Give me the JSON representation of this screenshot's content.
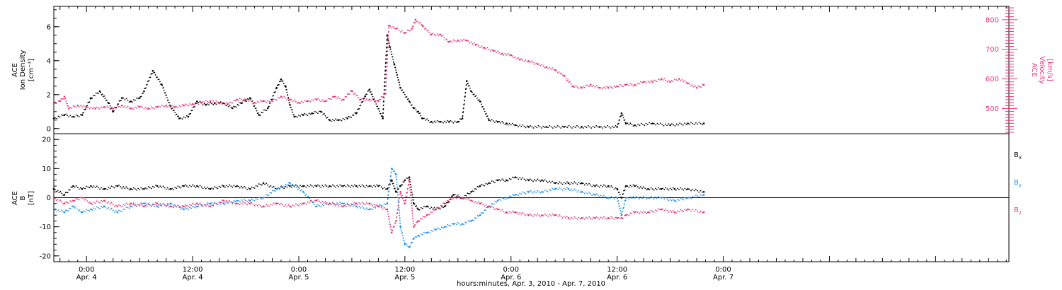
{
  "colors": {
    "density": "#000000",
    "velocity": "#e8336e",
    "bx": "#000000",
    "by": "#1f8ee8",
    "bz": "#e8336e",
    "frame": "#000000"
  },
  "x_axis": {
    "label": "hours:minutes, Apr.  3, 2010 - Apr.  7, 2010",
    "range_hours": [
      20.3,
      128.3
    ],
    "ticks": [
      {
        "hour": 24,
        "time": "0:00",
        "day": "Apr. 4"
      },
      {
        "hour": 36,
        "time": "12:00",
        "day": "Apr. 4"
      },
      {
        "hour": 48,
        "time": "0:00",
        "day": "Apr. 5"
      },
      {
        "hour": 60,
        "time": "12:00",
        "day": "Apr. 5"
      },
      {
        "hour": 72,
        "time": "0:00",
        "day": "Apr. 6"
      },
      {
        "hour": 84,
        "time": "12:00",
        "day": "Apr. 6"
      },
      {
        "hour": 96,
        "time": "0:00",
        "day": "Apr. 7"
      }
    ]
  },
  "chart_data": [
    {
      "type": "scatter",
      "panel": "plasma",
      "left_axis": {
        "label_line1": "ACE",
        "label_line2": "Ion Density",
        "label_line3": "[cm⁻³]",
        "ylim": [
          -0.3,
          7.2
        ],
        "ticks": [
          0,
          2,
          4,
          6
        ]
      },
      "right_axis": {
        "label_line1": "ACE",
        "label_line2": "Velocity",
        "label_line3": "[km/s]",
        "ylim": [
          415,
          845
        ],
        "ticks": [
          500,
          600,
          700,
          800
        ]
      },
      "series": [
        {
          "id": "density",
          "axis": "left",
          "x": [
            20.3,
            21.5,
            22.5,
            23.5,
            24.5,
            25.5,
            26.5,
            27.0,
            28.0,
            29.0,
            30.0,
            30.5,
            31.5,
            32.5,
            33.5,
            34.5,
            35.5,
            36.5,
            37.5,
            38.5,
            39.5,
            40.5,
            41.5,
            42.5,
            43.5,
            44.5,
            45.5,
            46.0,
            46.5,
            47.0,
            47.5,
            48.5,
            49.5,
            50.5,
            51.5,
            52.5,
            53.5,
            54.5,
            55.5,
            56.0,
            57.5,
            58.0,
            58.3,
            58.8,
            59.5,
            60.5,
            61.0,
            61.5,
            62.0,
            63.0,
            64.0,
            65.0,
            66.0,
            66.5,
            67.0,
            67.5,
            68.5,
            69.5,
            70.5,
            71.5,
            72.5,
            74.0,
            76.0,
            78.0,
            80.0,
            82.0,
            84.0,
            84.5,
            85.0,
            86.0,
            88.0,
            90.0,
            92.0,
            93.8
          ],
          "y": [
            0.6,
            0.8,
            0.7,
            0.8,
            1.8,
            2.2,
            1.5,
            1.0,
            1.8,
            1.6,
            1.8,
            2.2,
            3.4,
            2.6,
            1.3,
            0.6,
            0.7,
            1.6,
            1.4,
            1.5,
            1.5,
            1.2,
            1.5,
            1.8,
            0.8,
            1.2,
            2.4,
            2.9,
            2.5,
            1.4,
            0.7,
            0.8,
            0.9,
            1.0,
            0.5,
            0.5,
            0.6,
            0.9,
            1.9,
            2.3,
            0.6,
            5.5,
            4.8,
            3.8,
            2.4,
            1.6,
            1.2,
            1.0,
            0.6,
            0.4,
            0.4,
            0.4,
            0.4,
            0.6,
            2.8,
            2.2,
            1.6,
            0.5,
            0.4,
            0.3,
            0.2,
            0.1,
            0.1,
            0.1,
            0.1,
            0.1,
            0.1,
            0.9,
            0.3,
            0.2,
            0.3,
            0.2,
            0.3,
            0.3
          ]
        },
        {
          "id": "velocity",
          "axis": "right",
          "x": [
            20.3,
            21.0,
            21.5,
            22.0,
            23.0,
            24.0,
            25.0,
            26.0,
            27.0,
            28.0,
            29.0,
            30.0,
            31.0,
            32.0,
            33.0,
            34.0,
            35.0,
            36.0,
            37.0,
            38.0,
            39.0,
            40.0,
            41.0,
            42.0,
            43.0,
            44.0,
            45.0,
            46.0,
            47.0,
            48.0,
            49.0,
            50.0,
            51.0,
            52.0,
            53.0,
            54.0,
            55.0,
            56.0,
            57.0,
            57.8,
            58.2,
            59.0,
            60.0,
            60.8,
            61.2,
            62.0,
            63.0,
            64.0,
            65.0,
            66.0,
            67.0,
            68.0,
            69.0,
            70.0,
            71.0,
            72.0,
            73.0,
            74.0,
            75.0,
            76.0,
            77.0,
            78.0,
            79.0,
            80.0,
            81.0,
            82.0,
            83.0,
            84.0,
            85.0,
            86.0,
            87.0,
            88.0,
            89.0,
            90.0,
            91.0,
            92.0,
            93.0,
            93.8
          ],
          "y": [
            520,
            525,
            540,
            500,
            510,
            505,
            500,
            505,
            500,
            510,
            500,
            505,
            500,
            505,
            510,
            505,
            510,
            515,
            520,
            525,
            520,
            515,
            530,
            530,
            520,
            525,
            525,
            540,
            530,
            520,
            525,
            530,
            525,
            540,
            530,
            560,
            530,
            530,
            525,
            550,
            780,
            770,
            755,
            770,
            800,
            780,
            750,
            750,
            725,
            730,
            730,
            715,
            705,
            695,
            685,
            680,
            665,
            660,
            650,
            640,
            630,
            610,
            575,
            570,
            580,
            570,
            570,
            575,
            580,
            580,
            590,
            590,
            600,
            590,
            600,
            585,
            570,
            580
          ]
        }
      ]
    },
    {
      "type": "scatter",
      "panel": "magnetic-field",
      "left_axis": {
        "label_line1": "ACE",
        "label_line2": "B",
        "label_line3": "[nT]",
        "ylim": [
          -22,
          22
        ],
        "ticks": [
          -20,
          -10,
          0,
          10,
          20
        ]
      },
      "zero_line": true,
      "series": [
        {
          "id": "bx",
          "name": "B",
          "subscript": "x",
          "x": [
            20.3,
            21.5,
            22.5,
            23.5,
            24.5,
            26.0,
            27.5,
            29.0,
            30.5,
            32.0,
            33.5,
            35.0,
            36.5,
            38.0,
            39.5,
            41.0,
            42.5,
            44.0,
            45.5,
            47.0,
            48.5,
            50.0,
            51.5,
            53.0,
            54.5,
            56.0,
            57.0,
            58.0,
            58.5,
            59.0,
            59.5,
            60.0,
            60.5,
            61.0,
            61.5,
            62.5,
            63.5,
            64.5,
            65.5,
            66.5,
            67.5,
            68.5,
            69.5,
            70.5,
            71.5,
            72.5,
            74.0,
            75.5,
            77.0,
            78.5,
            80.0,
            81.5,
            83.0,
            84.0,
            84.5,
            85.0,
            86.0,
            87.5,
            89.0,
            90.5,
            92.0,
            93.8
          ],
          "y": [
            3,
            1,
            4,
            3,
            4,
            3,
            4,
            3,
            3,
            4,
            3,
            4,
            4,
            3,
            4,
            4,
            3,
            5,
            3,
            4,
            4,
            4,
            4,
            4,
            4,
            4,
            4,
            3,
            6,
            2,
            4,
            6,
            7,
            -2,
            -4,
            -3,
            -4,
            -3,
            1,
            0,
            2,
            4,
            5,
            6,
            6,
            7,
            6,
            6,
            5,
            5,
            5,
            4,
            4,
            3,
            0,
            4,
            4,
            3,
            3,
            3,
            3,
            2
          ]
        },
        {
          "id": "by",
          "name": "B",
          "subscript": "y",
          "x": [
            20.3,
            21.5,
            22.5,
            23.5,
            24.5,
            26.0,
            27.5,
            29.0,
            30.5,
            32.0,
            33.5,
            35.0,
            36.5,
            38.0,
            39.5,
            41.0,
            42.5,
            44.0,
            45.5,
            47.0,
            48.5,
            50.0,
            51.5,
            53.0,
            54.5,
            56.0,
            57.0,
            58.0,
            58.5,
            59.0,
            59.5,
            60.0,
            60.5,
            61.0,
            61.5,
            62.5,
            63.5,
            64.5,
            65.5,
            66.5,
            67.5,
            68.5,
            69.5,
            70.5,
            71.5,
            72.5,
            74.0,
            75.5,
            77.0,
            78.5,
            80.0,
            81.5,
            83.0,
            84.0,
            84.5,
            85.0,
            86.0,
            87.5,
            89.0,
            90.5,
            92.0,
            93.8
          ],
          "y": [
            -4,
            -5,
            -3,
            -5,
            -4,
            -3,
            -5,
            -3,
            -2,
            -3,
            -2,
            -4,
            -3,
            -2,
            -2,
            -1,
            -1,
            0,
            3,
            5,
            2,
            -3,
            -2,
            -2,
            -3,
            -4,
            -3,
            -2,
            10,
            8,
            -10,
            -16,
            -17,
            -14,
            -13,
            -12,
            -11,
            -10,
            -9,
            -9,
            -8,
            -6,
            -3,
            -1,
            0,
            1,
            2,
            2,
            3,
            3,
            2,
            1,
            0,
            0,
            -6,
            0,
            0,
            0,
            0,
            -1,
            0,
            1
          ]
        },
        {
          "id": "bz",
          "name": "B",
          "subscript": "z",
          "x": [
            20.3,
            21.5,
            22.5,
            23.5,
            24.5,
            26.0,
            27.5,
            29.0,
            30.5,
            32.0,
            33.5,
            35.0,
            36.5,
            38.0,
            39.5,
            41.0,
            42.5,
            44.0,
            45.5,
            47.0,
            48.5,
            50.0,
            51.5,
            53.0,
            54.5,
            56.0,
            57.0,
            58.0,
            58.5,
            59.0,
            59.5,
            60.0,
            60.5,
            61.0,
            61.5,
            62.5,
            63.5,
            64.5,
            65.5,
            66.5,
            67.5,
            68.5,
            69.5,
            70.5,
            71.5,
            72.5,
            74.0,
            75.5,
            77.0,
            78.5,
            80.0,
            81.5,
            83.0,
            84.0,
            84.5,
            85.0,
            86.0,
            87.5,
            89.0,
            90.5,
            92.0,
            93.8
          ],
          "y": [
            0,
            -2,
            -1,
            0,
            -2,
            -1,
            -3,
            -2,
            -3,
            -2,
            -3,
            -3,
            -2,
            -3,
            -1,
            -2,
            -2,
            -3,
            -2,
            -3,
            -2,
            -1,
            -2,
            -3,
            -2,
            -2,
            -3,
            -4,
            -12,
            -8,
            2,
            -2,
            6,
            -10,
            -8,
            -6,
            -4,
            -2,
            0,
            0,
            -1,
            -2,
            -3,
            -4,
            -5,
            -5,
            -6,
            -6,
            -6,
            -7,
            -7,
            -7,
            -7,
            -7,
            -7,
            -6,
            -5,
            -5,
            -4,
            -5,
            -4,
            -5
          ]
        }
      ]
    }
  ]
}
